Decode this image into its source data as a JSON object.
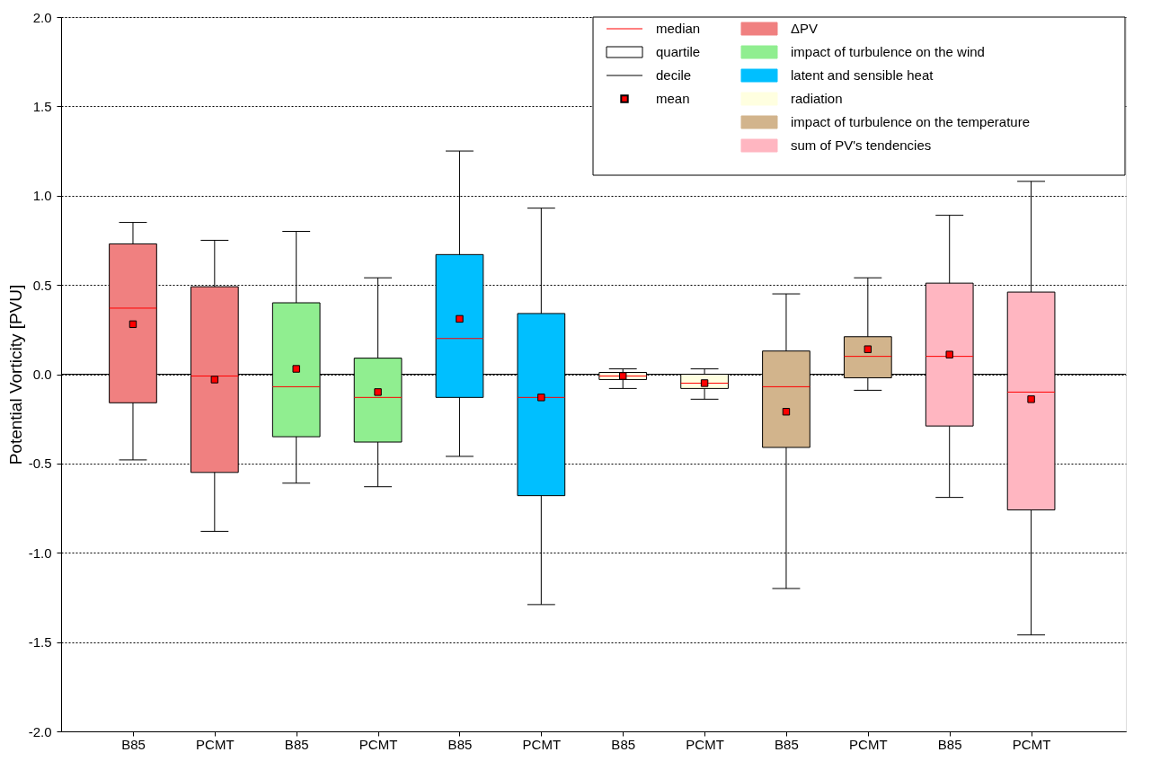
{
  "chart_data": {
    "type": "box",
    "ylabel": "Potential Vorticity [PVU]",
    "categories": [
      "B85",
      "PCMT",
      "B85",
      "PCMT",
      "B85",
      "PCMT",
      "B85",
      "PCMT",
      "B85",
      "PCMT",
      "B85",
      "PCMT"
    ],
    "ylim": [
      -2.0,
      2.0
    ],
    "yticks": [
      {
        "value": -2,
        "label": "-2.0"
      },
      {
        "value": -1.5,
        "label": "-1.5"
      },
      {
        "value": -1,
        "label": "-1.0"
      },
      {
        "value": -0.5,
        "label": "-0.5"
      },
      {
        "value": 0,
        "label": "0.0"
      },
      {
        "value": 0.5,
        "label": "0.5"
      },
      {
        "value": 1,
        "label": "1.0"
      },
      {
        "value": 1.5,
        "label": "1.5"
      },
      {
        "value": 2,
        "label": "2.0"
      }
    ],
    "grid": "y",
    "legend": "top right",
    "ref_lines": [
      {
        "axis": "y",
        "value": 0,
        "color": "#000000"
      }
    ],
    "annotations": [
      "median",
      "quartile",
      "decile"
    ],
    "series": [
      {
        "name": "mean",
        "type": "scatter",
        "marker": "square",
        "color": "#ff0000",
        "values": [
          0.28,
          -0.03,
          0.03,
          -0.1,
          0.31,
          -0.13,
          -0.01,
          -0.05,
          -0.21,
          0.14,
          0.11,
          -0.14
        ]
      },
      {
        "name": "ΔPV",
        "color": "#f08080",
        "boxes": [
          {
            "low": -0.48,
            "q1": -0.16,
            "median": 0.37,
            "q3": 0.73,
            "high": 0.85
          },
          {
            "low": -0.88,
            "q1": -0.55,
            "median": -0.01,
            "q3": 0.49,
            "high": 0.75
          },
          null,
          null,
          null,
          null,
          null,
          null,
          null,
          null,
          null,
          null
        ]
      },
      {
        "name": "impact of turbulence on the wind",
        "color": "#90ee90",
        "boxes": [
          null,
          null,
          {
            "low": -0.61,
            "q1": -0.35,
            "median": -0.07,
            "q3": 0.4,
            "high": 0.8
          },
          {
            "low": -0.63,
            "q1": -0.38,
            "median": -0.13,
            "q3": 0.09,
            "high": 0.54
          },
          null,
          null,
          null,
          null,
          null,
          null,
          null,
          null
        ]
      },
      {
        "name": "latent and sensible heat",
        "color": "#00bfff",
        "boxes": [
          null,
          null,
          null,
          null,
          {
            "low": -0.46,
            "q1": -0.13,
            "median": 0.2,
            "q3": 0.67,
            "high": 1.25
          },
          {
            "low": -1.29,
            "q1": -0.68,
            "median": -0.13,
            "q3": 0.34,
            "high": 0.93
          },
          null,
          null,
          null,
          null,
          null,
          null
        ]
      },
      {
        "name": "radiation",
        "color": "#ffffe0",
        "boxes": [
          null,
          null,
          null,
          null,
          null,
          null,
          {
            "low": -0.08,
            "q1": -0.03,
            "median": -0.01,
            "q3": 0.01,
            "high": 0.03
          },
          {
            "low": -0.14,
            "q1": -0.08,
            "median": -0.05,
            "q3": 0.0,
            "high": 0.03
          },
          null,
          null,
          null,
          null
        ]
      },
      {
        "name": "impact of turbulence on the temperature",
        "color": "#d2b48c",
        "boxes": [
          null,
          null,
          null,
          null,
          null,
          null,
          null,
          null,
          {
            "low": -1.2,
            "q1": -0.41,
            "median": -0.07,
            "q3": 0.13,
            "high": 0.45
          },
          {
            "low": -0.09,
            "q1": -0.02,
            "median": 0.1,
            "q3": 0.21,
            "high": 0.54
          },
          null,
          null
        ]
      },
      {
        "name": "sum of PV's tendencies",
        "color": "#ffb6c1",
        "boxes": [
          null,
          null,
          null,
          null,
          null,
          null,
          null,
          null,
          null,
          null,
          {
            "low": -0.69,
            "q1": -0.29,
            "median": 0.1,
            "q3": 0.51,
            "high": 0.89
          },
          {
            "low": -1.46,
            "q1": -0.76,
            "median": -0.1,
            "q3": 0.46,
            "high": 1.08
          }
        ]
      }
    ]
  }
}
